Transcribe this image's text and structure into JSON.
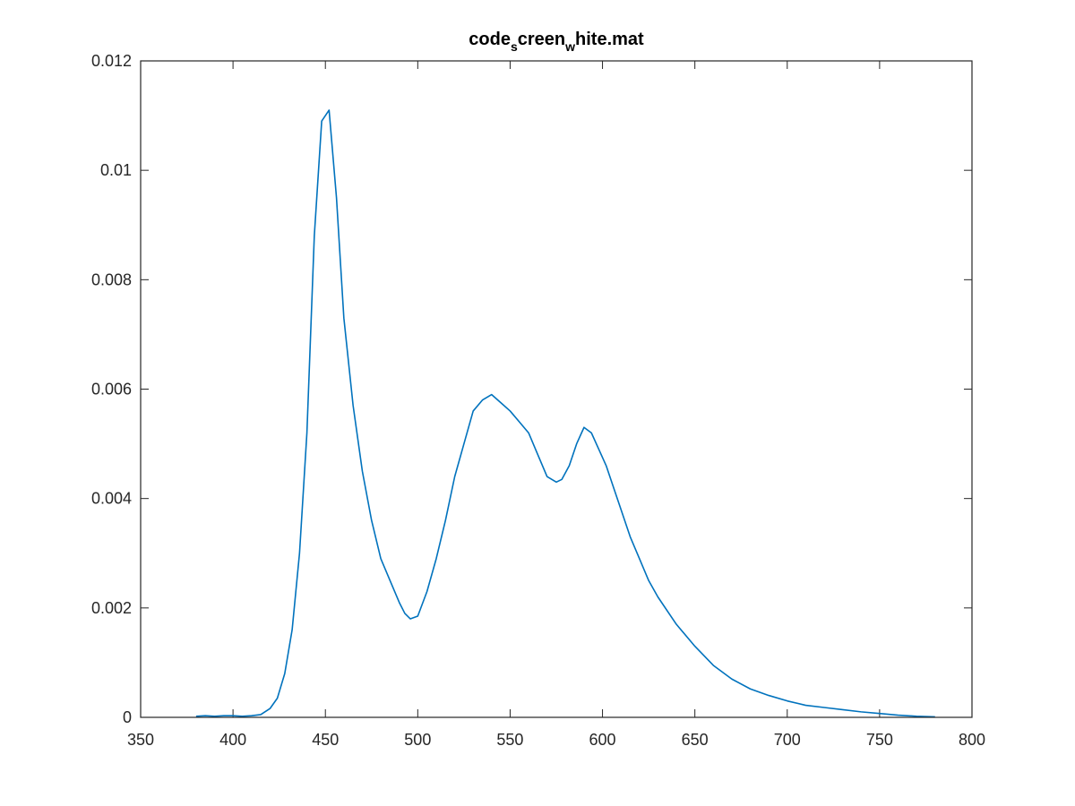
{
  "chart_data": {
    "type": "line",
    "title": {
      "part1": "code",
      "sub1": "s",
      "part2": "creen",
      "sub2": "w",
      "part3": "hite.mat"
    },
    "xlabel": "",
    "ylabel": "",
    "xlim": [
      350,
      800
    ],
    "ylim": [
      0,
      0.012
    ],
    "xticks": [
      "350",
      "400",
      "450",
      "500",
      "550",
      "600",
      "650",
      "700",
      "750",
      "800"
    ],
    "yticks": [
      "0",
      "0.002",
      "0.004",
      "0.006",
      "0.008",
      "0.01",
      "0.012"
    ],
    "grid": false,
    "line_color": "#0072BD",
    "series": [
      {
        "x": [
          380,
          385,
          390,
          395,
          400,
          405,
          410,
          415,
          420,
          424,
          428,
          432,
          436,
          440,
          444,
          448,
          452,
          456,
          460,
          465,
          470,
          475,
          480,
          485,
          490,
          493,
          496,
          500,
          505,
          510,
          515,
          520,
          525,
          530,
          535,
          540,
          545,
          550,
          555,
          560,
          565,
          570,
          575,
          578,
          582,
          586,
          590,
          594,
          598,
          602,
          606,
          610,
          615,
          620,
          625,
          630,
          640,
          650,
          660,
          670,
          680,
          690,
          700,
          710,
          720,
          730,
          740,
          750,
          760,
          770,
          780
        ],
        "y": [
          2e-05,
          3e-05,
          2e-05,
          3e-05,
          3e-05,
          2e-05,
          3e-05,
          5e-05,
          0.00016,
          0.00035,
          0.0008,
          0.0016,
          0.003,
          0.0052,
          0.0088,
          0.0109,
          0.0111,
          0.0095,
          0.0073,
          0.0057,
          0.0045,
          0.0036,
          0.0029,
          0.0025,
          0.0021,
          0.0019,
          0.0018,
          0.00185,
          0.0023,
          0.0029,
          0.0036,
          0.0044,
          0.005,
          0.0056,
          0.0058,
          0.0059,
          0.00575,
          0.0056,
          0.0054,
          0.0052,
          0.0048,
          0.0044,
          0.0043,
          0.00435,
          0.0046,
          0.005,
          0.0053,
          0.0052,
          0.0049,
          0.0046,
          0.0042,
          0.0038,
          0.0033,
          0.0029,
          0.0025,
          0.0022,
          0.0017,
          0.0013,
          0.00095,
          0.0007,
          0.00052,
          0.0004,
          0.0003,
          0.00022,
          0.00018,
          0.00014,
          0.0001,
          7e-05,
          4e-05,
          2e-05,
          1e-05
        ]
      }
    ]
  }
}
